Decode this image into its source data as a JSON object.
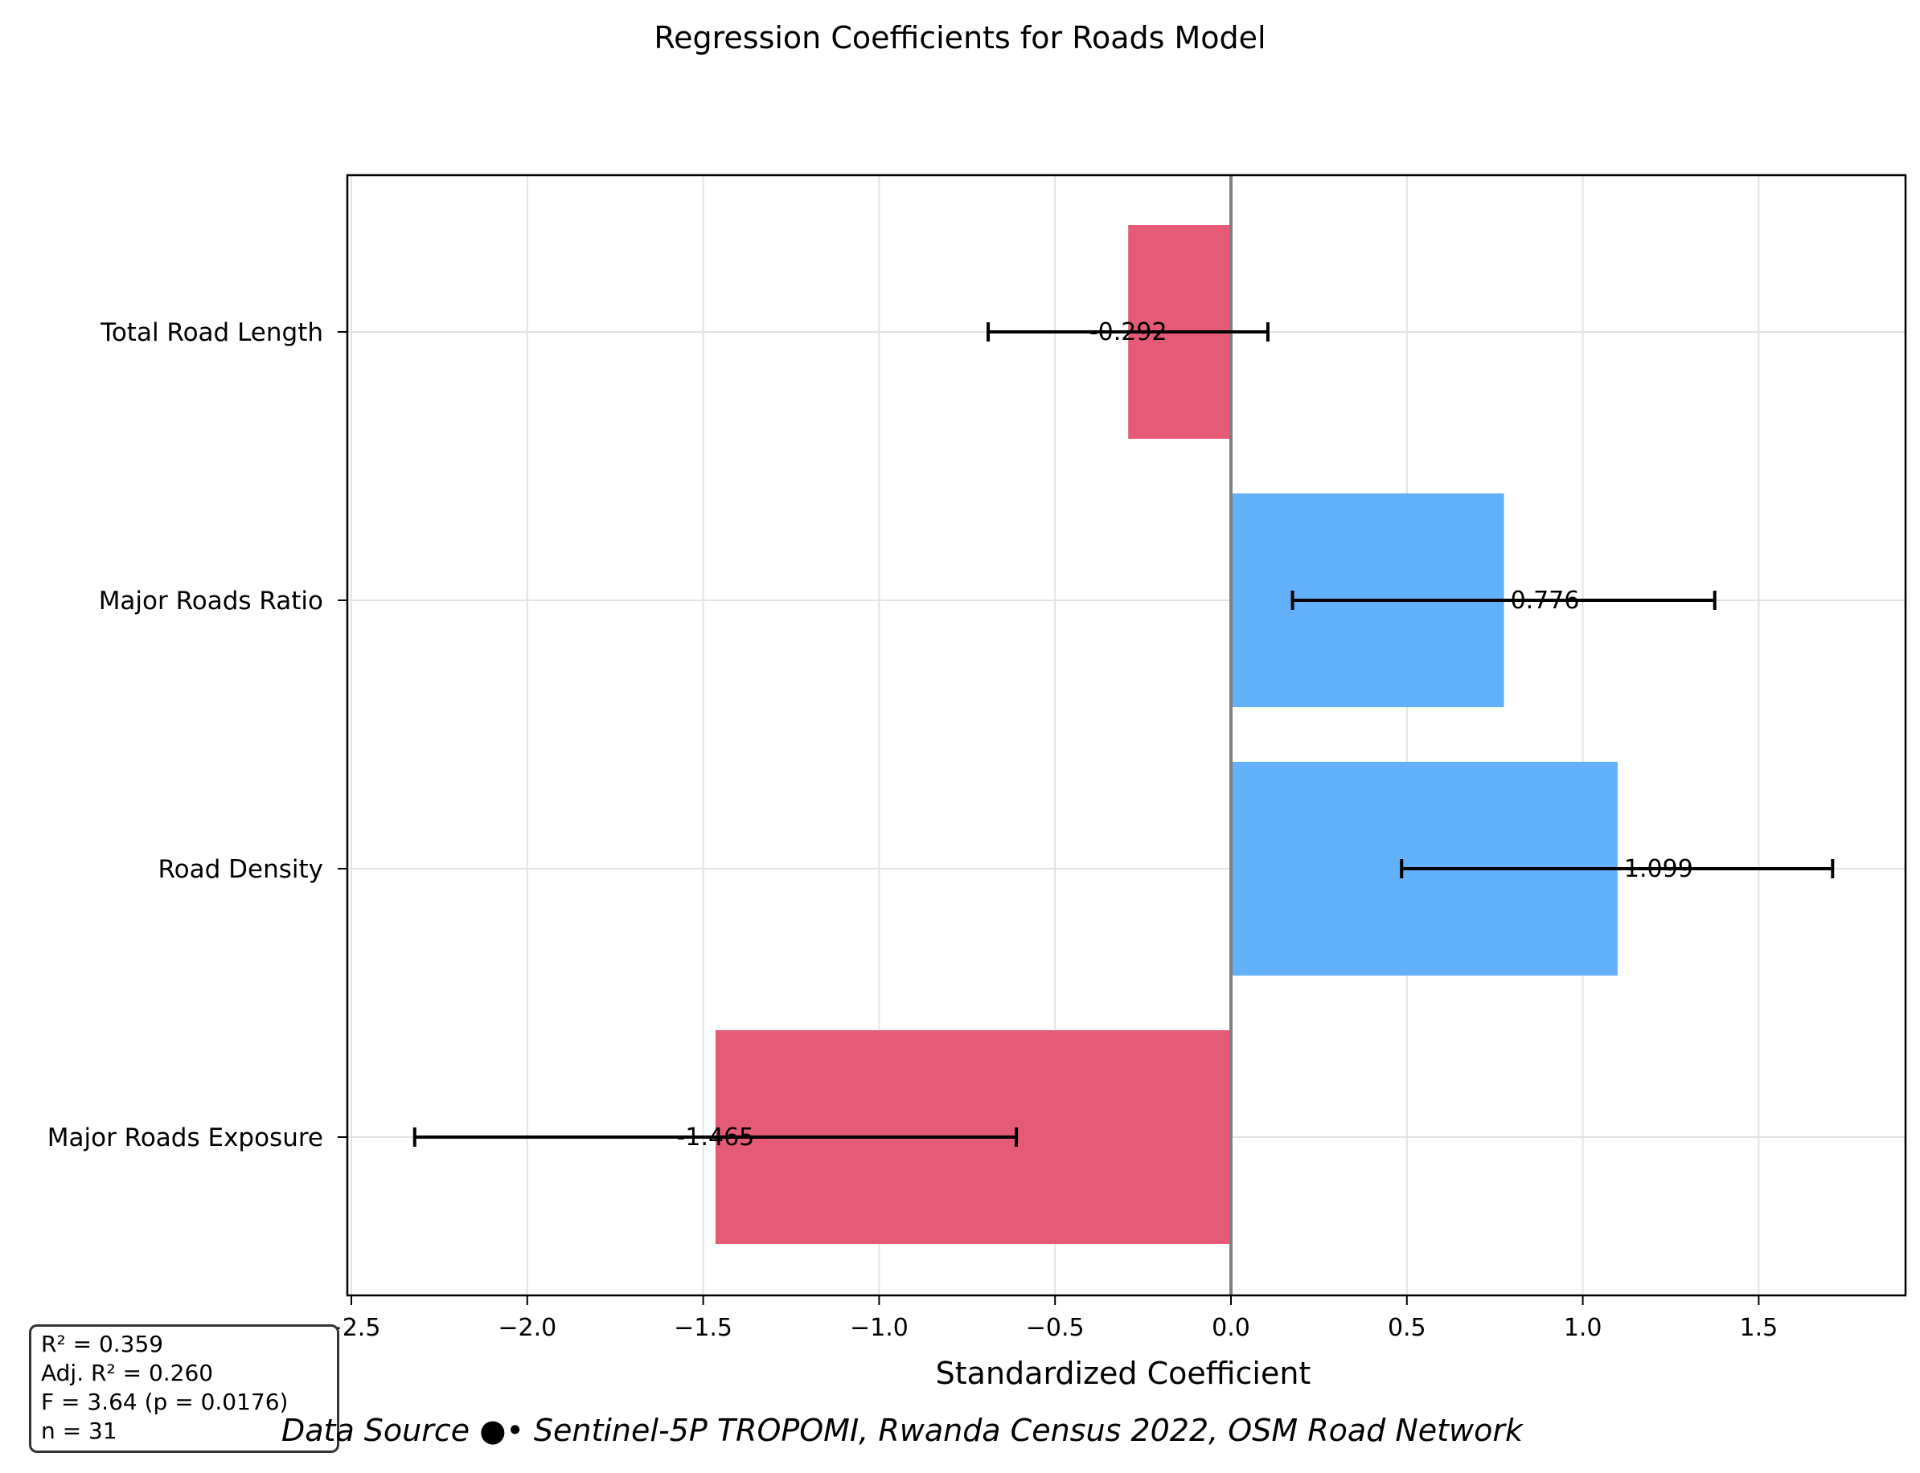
{
  "chart_data": {
    "type": "bar",
    "orientation": "horizontal",
    "title": "Regression Coefficients for Roads Model",
    "xlabel": "Standardized Coefficient",
    "ylabel": "",
    "xlim": [
      -2.5,
      1.9
    ],
    "categories": [
      "Total Road Length",
      "Major Roads Ratio",
      "Road Density",
      "Major Roads Exposure"
    ],
    "values": [
      -0.292,
      0.776,
      1.099,
      -1.465
    ],
    "value_labels": [
      "-0.292",
      "0.776",
      "1.099",
      "-1.465"
    ],
    "error_low": [
      -0.69,
      0.175,
      0.485,
      -2.32
    ],
    "error_high": [
      0.105,
      1.375,
      1.71,
      -0.61
    ],
    "xticks": [
      -2.5,
      -2.0,
      -1.5,
      -1.0,
      -0.5,
      0.0,
      0.5,
      1.0,
      1.5
    ],
    "xtick_labels": [
      "−2.5",
      "−2.0",
      "−1.5",
      "−1.0",
      "−0.5",
      "0.0",
      "0.5",
      "1.0",
      "1.5"
    ],
    "grid": true,
    "colors": {
      "positive": "#63b0fb",
      "negative": "#e55a74",
      "zero_line": "#808080",
      "error_bar": "#000000"
    }
  },
  "stats": {
    "r2": "R² = 0.359",
    "adj_r2": "Adj. R² = 0.260",
    "f_stat": "F = 3.64 (p = 0.0176)",
    "n": "n = 31"
  },
  "source": "Data Source ●• Sentinel-5P TROPOMI, Rwanda Census 2022, OSM Road Network"
}
